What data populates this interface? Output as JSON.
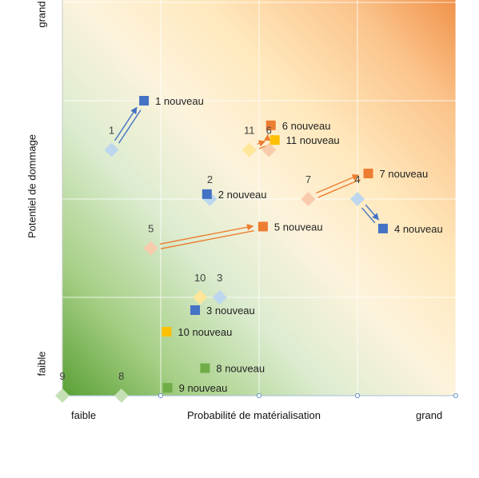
{
  "chart_data": {
    "type": "scatter",
    "xlabel": "Probabilité de matérialisation",
    "ylabel": "Potentiel de dommage",
    "x_low_label": "faible",
    "x_high_label": "grand",
    "y_low_label": "faible",
    "y_high_label": "grand",
    "xlim": [
      0,
      4
    ],
    "ylim": [
      0,
      4
    ],
    "grid": true,
    "colors": {
      "blue": "#4472C4",
      "orange": "#ED7D31",
      "yellow": "#FFC000",
      "green": "#70AD47",
      "blue_old": "#BDD7EE",
      "orange_old": "#F8CBAD",
      "yellow_old": "#FFE699",
      "green_old": "#C5E0B4",
      "arrow_blue": "#4472C4",
      "arrow_orange": "#ED7D31"
    },
    "previous_points": [
      {
        "id": "1",
        "label": "1",
        "x": 0.5,
        "y": 2.5,
        "color": "blue_old"
      },
      {
        "id": "2",
        "label": "2",
        "x": 1.5,
        "y": 2.0,
        "color": "blue_old"
      },
      {
        "id": "3",
        "label": "3",
        "x": 1.6,
        "y": 1.0,
        "color": "blue_old"
      },
      {
        "id": "4",
        "label": "4",
        "x": 3.0,
        "y": 2.0,
        "color": "blue_old"
      },
      {
        "id": "5",
        "label": "5",
        "x": 0.9,
        "y": 1.5,
        "color": "orange_old"
      },
      {
        "id": "6",
        "label": "6",
        "x": 2.1,
        "y": 2.5,
        "color": "orange_old"
      },
      {
        "id": "7",
        "label": "7",
        "x": 2.5,
        "y": 2.0,
        "color": "orange_old"
      },
      {
        "id": "8",
        "label": "8",
        "x": 0.6,
        "y": 0.0,
        "color": "green_old"
      },
      {
        "id": "9",
        "label": "9",
        "x": 0.0,
        "y": 0.0,
        "color": "green_old"
      },
      {
        "id": "10",
        "label": "10",
        "x": 1.4,
        "y": 1.0,
        "color": "yellow_old"
      },
      {
        "id": "11",
        "label": "11",
        "x": 1.9,
        "y": 2.5,
        "color": "yellow_old"
      }
    ],
    "new_points": [
      {
        "id": "1",
        "number": "1",
        "suffix": "nouveau",
        "x": 0.83,
        "y": 3.0,
        "color": "blue"
      },
      {
        "id": "2",
        "number": "2",
        "suffix": "nouveau",
        "x": 1.47,
        "y": 2.05,
        "color": "blue"
      },
      {
        "id": "3",
        "number": "3",
        "suffix": "nouveau",
        "x": 1.35,
        "y": 0.87,
        "color": "blue"
      },
      {
        "id": "4",
        "number": "4",
        "suffix": "nouveau",
        "x": 3.26,
        "y": 1.7,
        "color": "blue"
      },
      {
        "id": "5",
        "number": "5",
        "suffix": "nouveau",
        "x": 2.04,
        "y": 1.72,
        "color": "orange"
      },
      {
        "id": "6",
        "number": "6",
        "suffix": "nouveau",
        "x": 2.12,
        "y": 2.75,
        "color": "orange"
      },
      {
        "id": "7",
        "number": "7",
        "suffix": "nouveau",
        "x": 3.11,
        "y": 2.26,
        "color": "orange"
      },
      {
        "id": "8",
        "number": "8",
        "suffix": "nouveau",
        "x": 1.45,
        "y": 0.28,
        "color": "green"
      },
      {
        "id": "9",
        "number": "9",
        "suffix": "nouveau",
        "x": 1.07,
        "y": 0.08,
        "color": "green"
      },
      {
        "id": "10",
        "number": "10",
        "suffix": "nouveau",
        "x": 1.06,
        "y": 0.65,
        "color": "yellow"
      },
      {
        "id": "11",
        "number": "11",
        "suffix": "nouveau",
        "x": 2.16,
        "y": 2.6,
        "color": "yellow"
      }
    ],
    "movements": [
      {
        "from": "1",
        "to": "1",
        "color": "arrow_blue"
      },
      {
        "from": "4",
        "to": "4",
        "color": "arrow_blue"
      },
      {
        "from": "5",
        "to": "5",
        "color": "arrow_orange"
      },
      {
        "from": "6",
        "to": "6",
        "color": "arrow_orange"
      },
      {
        "from": "7",
        "to": "7",
        "color": "arrow_orange"
      },
      {
        "from": "11",
        "to": "11",
        "color": "arrow_orange"
      }
    ]
  }
}
